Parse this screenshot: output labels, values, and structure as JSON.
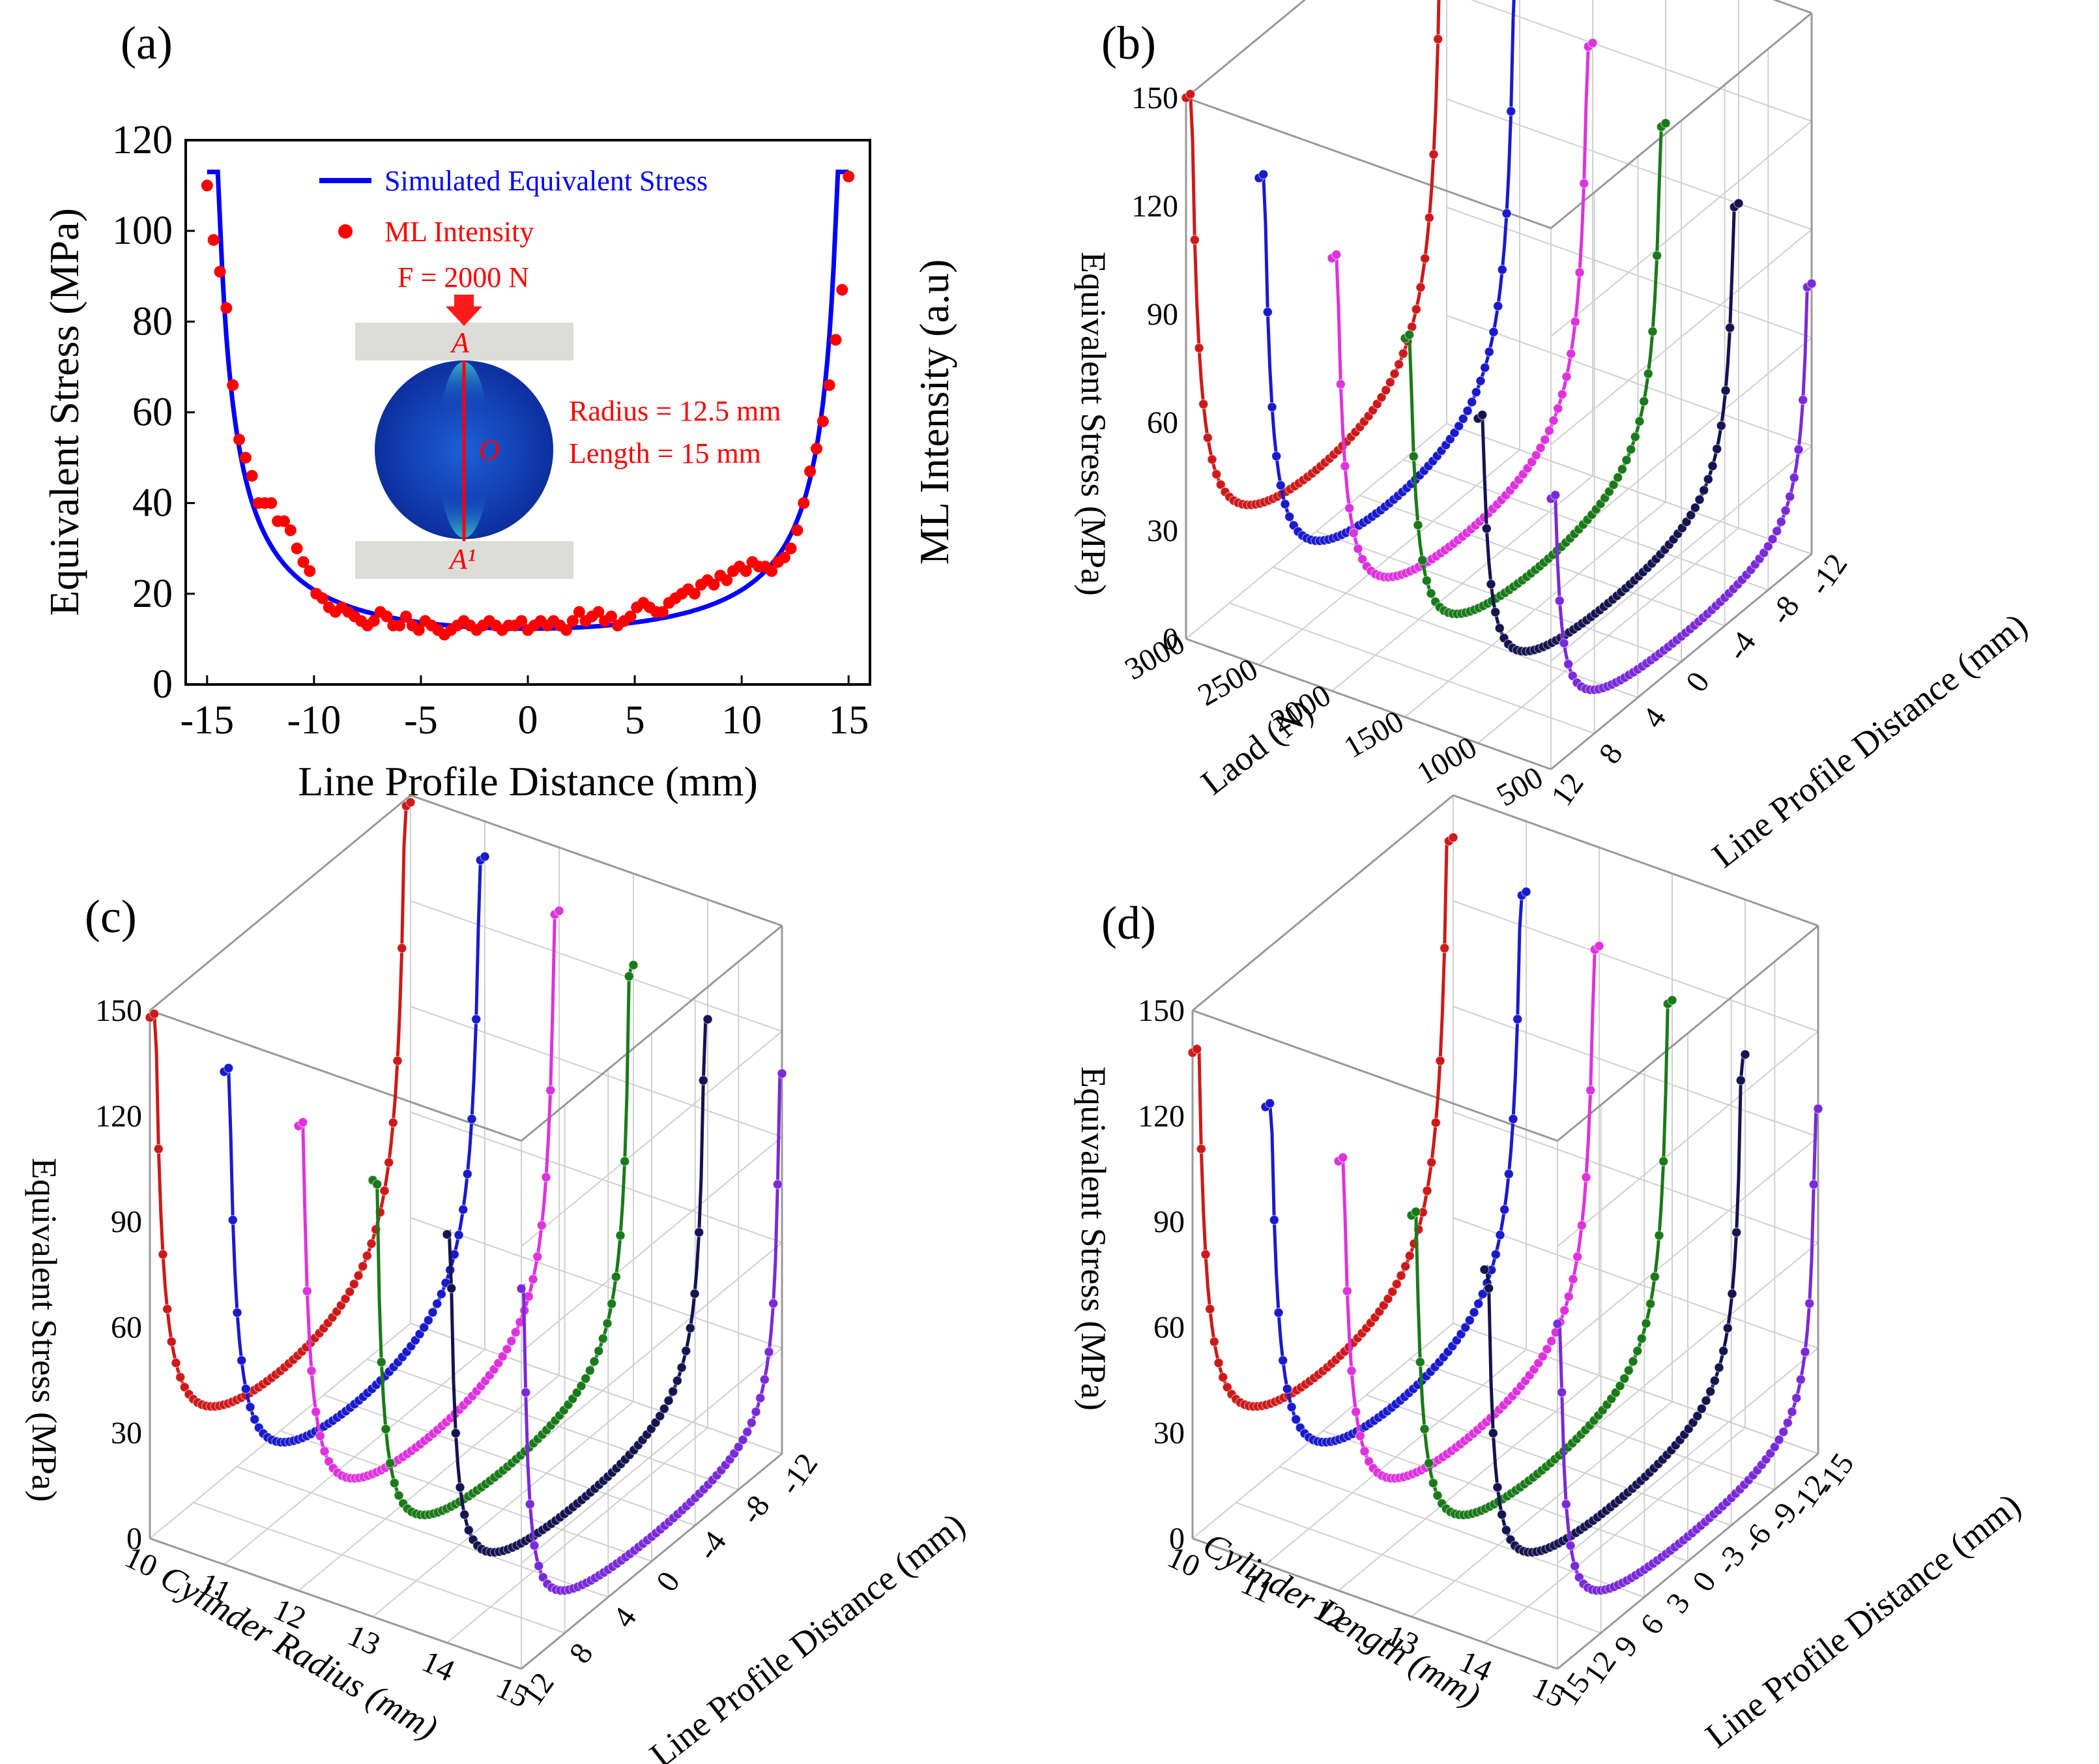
{
  "chart_data": [
    {
      "panel": "(a)",
      "type": "line",
      "xlabel": "Line Profile Distance (mm)",
      "ylabel": "Equivalent Stress (MPa)",
      "ylabel_right": "ML Intensity (a.u)",
      "xlim": [
        -16,
        16
      ],
      "ylim": [
        0,
        120
      ],
      "xticks": [
        "-15",
        "-10",
        "-5",
        "0",
        "5",
        "10",
        "15"
      ],
      "yticks": [
        "0",
        "20",
        "40",
        "60",
        "80",
        "100",
        "120"
      ],
      "legend": [
        "Simulated Equivalent Stress",
        "ML Intensity"
      ],
      "inset": {
        "force": "F = 2000 N",
        "radius": "Radius = 12.5 mm",
        "length": "Length  = 15 mm",
        "point_top": "A",
        "point_center": "O",
        "point_bottom": "A¹"
      },
      "series": [
        {
          "name": "Simulated Equivalent Stress",
          "color": "#0000ff",
          "style": "line",
          "x": [
            -15,
            -14.5,
            -14,
            -13,
            -12,
            -11,
            -10,
            -9,
            -8,
            -7,
            -6,
            -5,
            -4,
            -3,
            -2,
            -1,
            0,
            1,
            2,
            3,
            4,
            5,
            6,
            7,
            8,
            9,
            10,
            11,
            12,
            13,
            14,
            14.5,
            15
          ],
          "y": [
            113,
            78,
            62,
            43,
            32,
            25.5,
            20.5,
            17.5,
            15.8,
            14.7,
            14,
            13.4,
            13,
            12.7,
            12.5,
            12.4,
            12.3,
            12.4,
            12.5,
            12.7,
            13,
            13.4,
            14,
            14.7,
            15.8,
            17.5,
            20.5,
            25.5,
            32,
            43,
            62,
            78,
            113
          ]
        },
        {
          "name": "ML Intensity",
          "color": "#ff0000",
          "style": "scatter",
          "x": [
            -15,
            -14.7,
            -14.4,
            -14.1,
            -13.8,
            -13.5,
            -13.2,
            -12.9,
            -12.6,
            -12.3,
            -12,
            -11.7,
            -11.4,
            -11.1,
            -10.8,
            -10.5,
            -10.2,
            -9.9,
            -9.6,
            -9.3,
            -9,
            -8.7,
            -8.4,
            -8.1,
            -7.8,
            -7.5,
            -7.2,
            -6.9,
            -6.6,
            -6.3,
            -6,
            -5.7,
            -5.4,
            -5.1,
            -4.8,
            -4.5,
            -4.2,
            -3.9,
            -3.6,
            -3.3,
            -3,
            -2.7,
            -2.4,
            -2.1,
            -1.8,
            -1.5,
            -1.2,
            -0.9,
            -0.6,
            -0.3,
            0,
            0.3,
            0.6,
            0.9,
            1.2,
            1.5,
            1.8,
            2.1,
            2.4,
            2.7,
            3,
            3.3,
            3.6,
            3.9,
            4.2,
            4.5,
            4.8,
            5.1,
            5.4,
            5.7,
            6,
            6.3,
            6.6,
            6.9,
            7.2,
            7.5,
            7.8,
            8.1,
            8.4,
            8.7,
            9,
            9.3,
            9.6,
            9.9,
            10.2,
            10.5,
            10.8,
            11.1,
            11.4,
            11.7,
            12,
            12.3,
            12.6,
            12.9,
            13.2,
            13.5,
            13.8,
            14.1,
            14.4,
            14.7,
            15
          ],
          "y": [
            110,
            98,
            91,
            83,
            66,
            54,
            50,
            46,
            40,
            40,
            40,
            36,
            36,
            34,
            30,
            27,
            25,
            20,
            19,
            17,
            16,
            17,
            16,
            15,
            14,
            13,
            14,
            16,
            15,
            13,
            13,
            15,
            13,
            12,
            14,
            13,
            12,
            11,
            12,
            13,
            14,
            13,
            12,
            13,
            14,
            13,
            12,
            13,
            13,
            14,
            12,
            13,
            14,
            13,
            14,
            13,
            12,
            14,
            16,
            14,
            15,
            16,
            14,
            15,
            13,
            14,
            15,
            17,
            18,
            17,
            16,
            16,
            18,
            19,
            20,
            21,
            20,
            22,
            23,
            22,
            24,
            23,
            25,
            26,
            25,
            27,
            26,
            26,
            25,
            27,
            28,
            30,
            34,
            40,
            47,
            52,
            58,
            66,
            76,
            87,
            112
          ]
        }
      ]
    },
    {
      "panel": "(b)",
      "type": "line",
      "title": "",
      "xlabel": "Laod (N)",
      "ylabel": "Equivalent Stress (MPa)",
      "zlabel": "Line Profile Distance (mm)",
      "zlim": [
        0,
        150
      ],
      "stress_ticks": [
        "0",
        "30",
        "60",
        "90",
        "120",
        "150"
      ],
      "load_ticks": [
        "3000",
        "2500",
        "2000",
        "1500",
        "1000",
        "500"
      ],
      "profile_ticks": [
        "-12",
        "-8",
        "-4",
        "0",
        "4",
        "8",
        "12"
      ],
      "series": [
        {
          "name": "3000 N",
          "color": "#cc1a1a",
          "peak": 150,
          "min": 17
        },
        {
          "name": "2500 N",
          "color": "#1a1acc",
          "peak": 135,
          "min": 15
        },
        {
          "name": "2000 N",
          "color": "#dd33dd",
          "peak": 120,
          "min": 13
        },
        {
          "name": "1500 N",
          "color": "#1a7a1a",
          "peak": 105,
          "min": 11
        },
        {
          "name": "1000 N",
          "color": "#141450",
          "peak": 90,
          "min": 9
        },
        {
          "name": "500 N",
          "color": "#7a2ad8",
          "peak": 75,
          "min": 7
        }
      ]
    },
    {
      "panel": "(c)",
      "type": "line",
      "xlabel": "Cylinder Radius (mm)",
      "ylabel": "Equivalent Stress (MPa)",
      "zlabel": "Line Profile Distance (mm)",
      "zlim": [
        0,
        150
      ],
      "stress_ticks": [
        "0",
        "30",
        "60",
        "90",
        "120",
        "150"
      ],
      "radius_ticks": [
        "10",
        "11",
        "12",
        "13",
        "14",
        "15"
      ],
      "profile_ticks": [
        "-12",
        "-8",
        "-4",
        "0",
        "4",
        "8",
        "12"
      ],
      "series": [
        {
          "name": "10 mm",
          "color": "#cc1a1a",
          "peak": 148,
          "min": 17
        },
        {
          "name": "11 mm",
          "color": "#1a1acc",
          "peak": 140,
          "min": 15
        },
        {
          "name": "12 mm",
          "color": "#dd33dd",
          "peak": 132,
          "min": 13
        },
        {
          "name": "13 mm",
          "color": "#1a7a1a",
          "peak": 124,
          "min": 11
        },
        {
          "name": "14 mm",
          "color": "#141450",
          "peak": 116,
          "min": 9
        },
        {
          "name": "15 mm",
          "color": "#7a2ad8",
          "peak": 108,
          "min": 7
        }
      ]
    },
    {
      "panel": "(d)",
      "type": "line",
      "xlabel": "Cylinder Length (mm)",
      "ylabel": "Equivalent Stress (MPa)",
      "zlabel": "Line Profile Distance (mm)",
      "zlim": [
        0,
        150
      ],
      "stress_ticks": [
        "0",
        "30",
        "60",
        "90",
        "120",
        "150"
      ],
      "length_ticks": [
        "10",
        "11",
        "12",
        "13",
        "14",
        "15"
      ],
      "profile_ticks": [
        "-15",
        "-12",
        "-9",
        "-6",
        "-3",
        "0",
        "3",
        "6",
        "9",
        "12",
        "15"
      ],
      "series": [
        {
          "name": "10 mm",
          "color": "#cc1a1a",
          "peak": 138,
          "min": 17
        },
        {
          "name": "11 mm",
          "color": "#1a1acc",
          "peak": 130,
          "min": 15
        },
        {
          "name": "12 mm",
          "color": "#dd33dd",
          "peak": 122,
          "min": 13
        },
        {
          "name": "13 mm",
          "color": "#1a7a1a",
          "peak": 114,
          "min": 11
        },
        {
          "name": "14 mm",
          "color": "#141450",
          "peak": 106,
          "min": 9
        },
        {
          "name": "15 mm",
          "color": "#7a2ad8",
          "peak": 98,
          "min": 7
        }
      ]
    }
  ]
}
